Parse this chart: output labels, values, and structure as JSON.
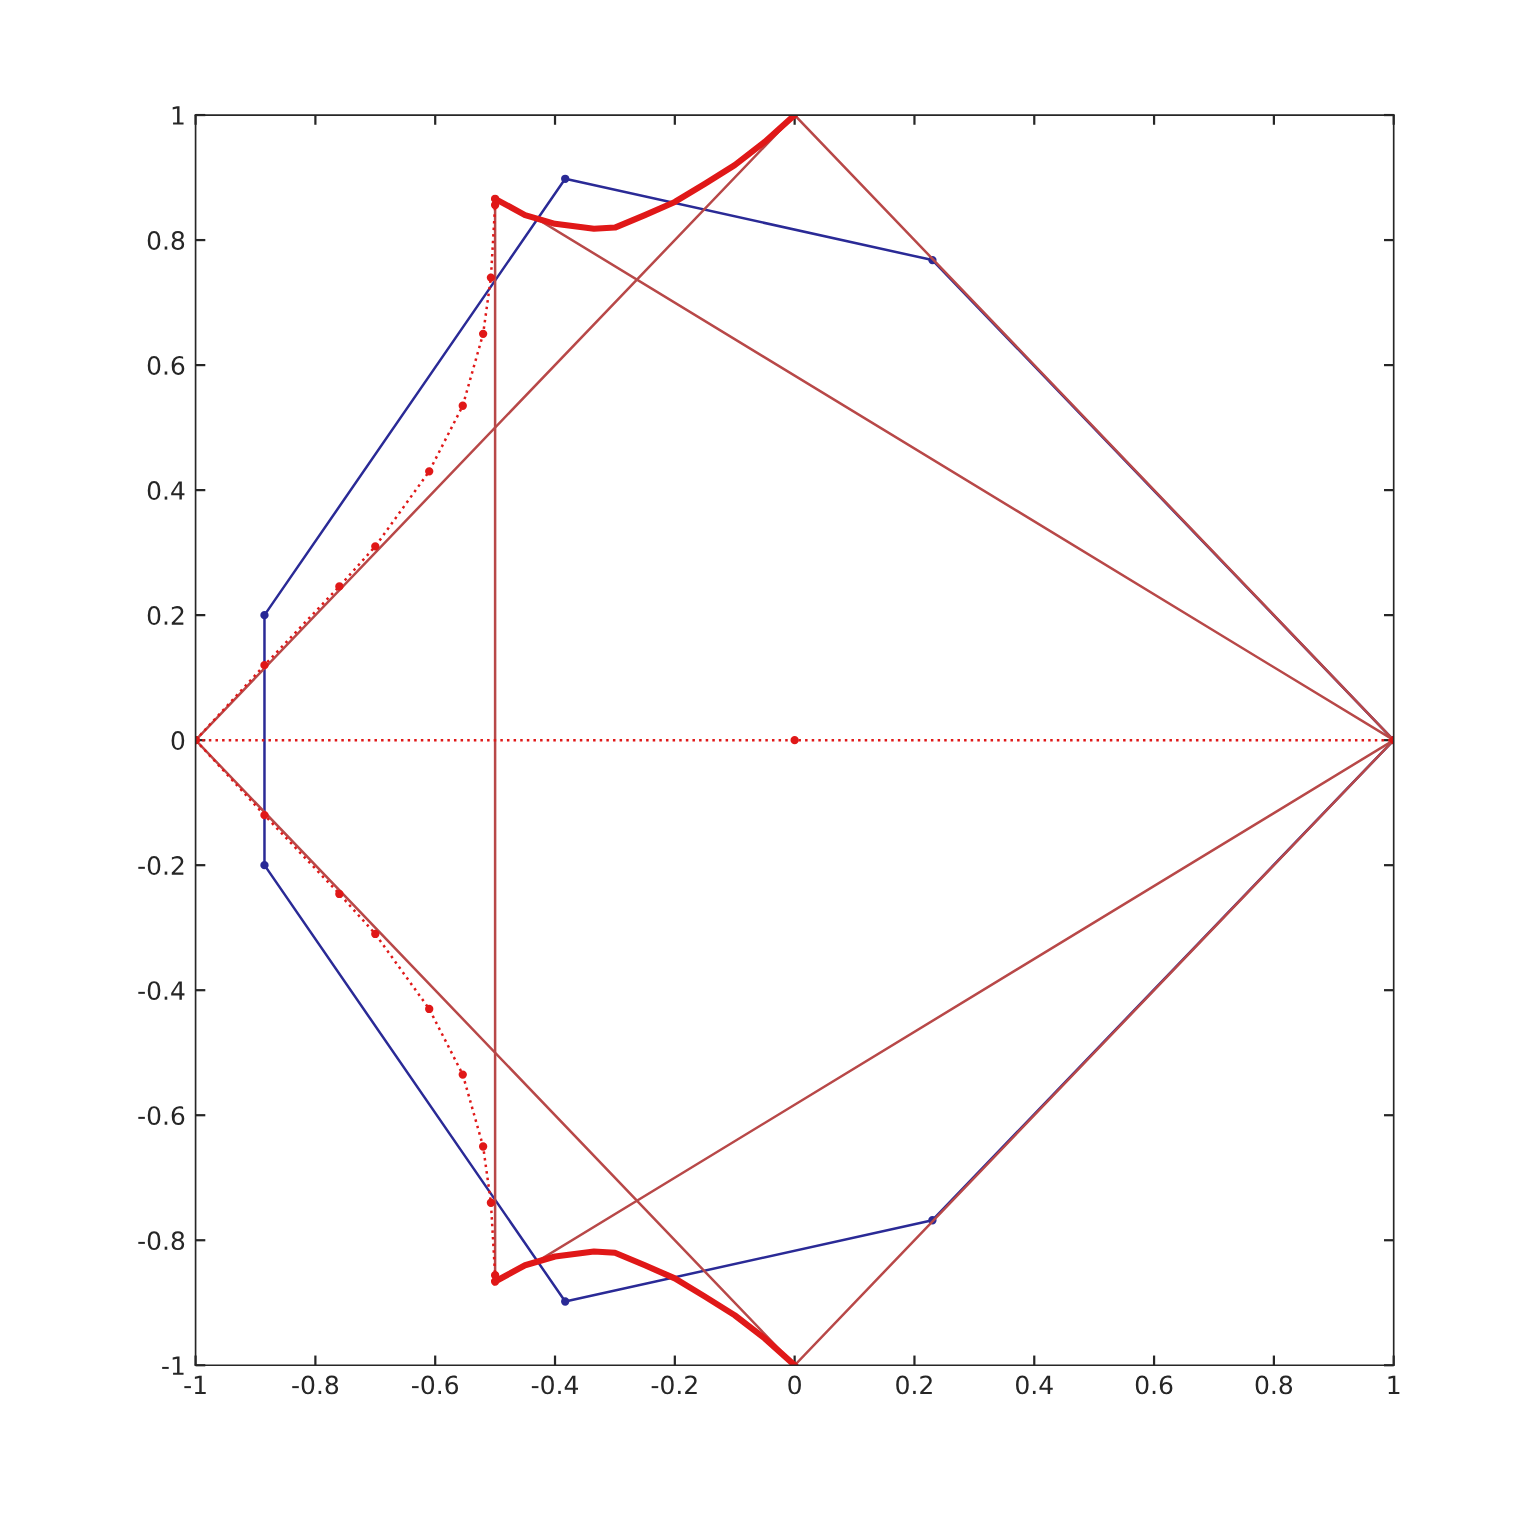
{
  "chart_data": {
    "type": "line",
    "xlim": [
      -1,
      1
    ],
    "ylim": [
      -1,
      1
    ],
    "xticks": [
      -1,
      -0.8,
      -0.6,
      -0.4,
      -0.2,
      0,
      0.2,
      0.4,
      0.6,
      0.8,
      1
    ],
    "yticks": [
      -1,
      -0.8,
      -0.6,
      -0.4,
      -0.2,
      0,
      0.2,
      0.4,
      0.6,
      0.8,
      1
    ],
    "grid": false,
    "legend": false,
    "series": [
      {
        "color": "#2a2a96",
        "marker": "circle",
        "line_style": "solid",
        "x": [
          -0.885,
          -0.383,
          0.23,
          1
        ],
        "values": [
          0.2,
          0.898,
          0.768,
          0
        ]
      },
      {
        "color": "#2a2a96",
        "marker": "circle",
        "line_style": "solid",
        "x": [
          -0.885,
          -0.383,
          0.23,
          1
        ],
        "values": [
          -0.2,
          -0.898,
          -0.768,
          0
        ]
      },
      {
        "color": "#2a2a96",
        "line_style": "solid",
        "x": [
          -0.885,
          -0.885
        ],
        "values": [
          -0.2,
          0.2
        ]
      },
      {
        "color": "#b84848",
        "line_style": "solid",
        "x": [
          -1,
          0,
          1
        ],
        "values": [
          0,
          1,
          0
        ]
      },
      {
        "color": "#b84848",
        "line_style": "solid",
        "x": [
          -1,
          0,
          1
        ],
        "values": [
          0,
          -1,
          0
        ]
      },
      {
        "color": "#b84848",
        "line_style": "solid",
        "x": [
          -0.5,
          -0.5
        ],
        "values": [
          -0.866,
          0.866
        ]
      },
      {
        "color": "#b84848",
        "line_style": "solid",
        "x": [
          -0.43,
          1
        ],
        "values": [
          0.834,
          0
        ]
      },
      {
        "color": "#b84848",
        "line_style": "solid",
        "x": [
          -0.43,
          1
        ],
        "values": [
          -0.834,
          0
        ]
      },
      {
        "color": "#e01818",
        "marker": "circle",
        "line_style": "dotted",
        "x": [
          -1,
          0,
          1
        ],
        "values": [
          0,
          0,
          0
        ]
      },
      {
        "color": "#e01818",
        "line_style": "solid",
        "x": [
          -0.5,
          -0.45,
          -0.4,
          -0.335,
          -0.3,
          -0.25,
          -0.2,
          -0.15,
          -0.1,
          -0.05,
          0
        ],
        "values": [
          0.866,
          0.84,
          0.826,
          0.818,
          0.82,
          0.84,
          0.861,
          0.89,
          0.92,
          0.957,
          1
        ]
      },
      {
        "color": "#e01818",
        "line_style": "solid",
        "x": [
          -0.5,
          -0.45,
          -0.4,
          -0.335,
          -0.3,
          -0.25,
          -0.2,
          -0.15,
          -0.1,
          -0.05,
          0
        ],
        "values": [
          -0.866,
          -0.84,
          -0.826,
          -0.818,
          -0.82,
          -0.84,
          -0.861,
          -0.89,
          -0.92,
          -0.957,
          -1
        ]
      },
      {
        "color": "#e01818",
        "marker": "circle",
        "line_style": "dotted",
        "x": [
          -1,
          -0.885,
          -0.76,
          -0.7,
          -0.61,
          -0.554,
          -0.52,
          -0.507,
          -0.5,
          -0.5
        ],
        "values": [
          0,
          0.12,
          0.246,
          0.31,
          0.43,
          0.535,
          0.65,
          0.74,
          0.856,
          0.866
        ]
      },
      {
        "color": "#e01818",
        "marker": "circle",
        "line_style": "dotted",
        "x": [
          -1,
          -0.885,
          -0.76,
          -0.7,
          -0.61,
          -0.554,
          -0.52,
          -0.507,
          -0.5,
          -0.5
        ],
        "values": [
          0,
          -0.12,
          -0.246,
          -0.31,
          -0.43,
          -0.535,
          -0.65,
          -0.74,
          -0.856,
          -0.866
        ]
      }
    ]
  }
}
